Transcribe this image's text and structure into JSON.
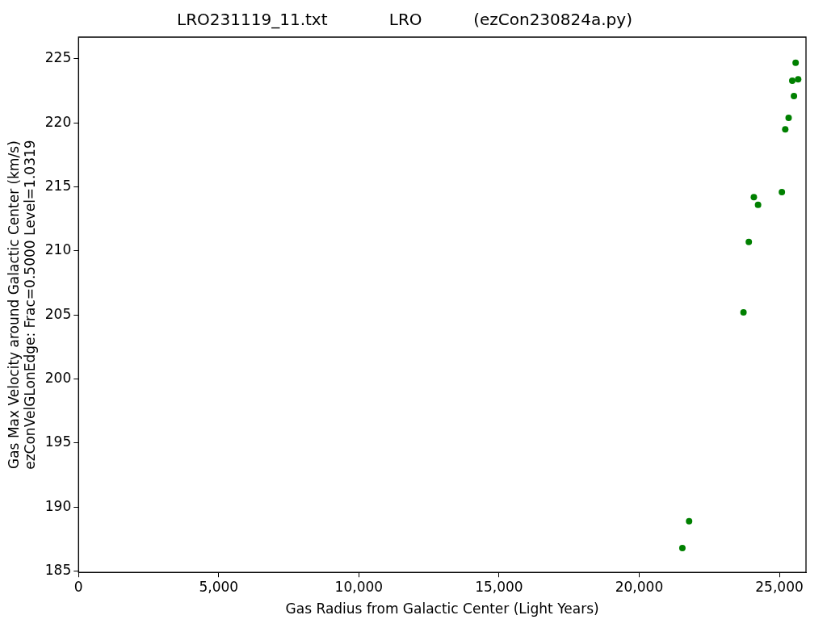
{
  "chart_data": {
    "type": "scatter",
    "title": "LRO231119_11.txt            LRO          (ezCon230824a.py)",
    "xlabel": "Gas Radius from Galactic Center (Light Years)",
    "ylabel": "Gas Max Velocity around Galactic Center (km/s)\nezConVelGLonEdge: Frac=0.5000 Level=1.0319",
    "series": [
      {
        "color": "#008000",
        "x": [
          21540,
          21780,
          23720,
          23910,
          24090,
          24240,
          25090,
          25210,
          25330,
          25520,
          25460,
          25670,
          25580
        ],
        "values": [
          186.8,
          188.9,
          205.2,
          210.7,
          214.2,
          213.6,
          214.6,
          219.5,
          220.4,
          222.1,
          223.3,
          223.4,
          224.7
        ]
      }
    ],
    "xlim": [
      0,
      25950
    ],
    "ylim": [
      184.9,
      226.7
    ],
    "xticks": [
      0,
      {
        "value": 5000,
        "label": "5,000"
      },
      {
        "value": 10000,
        "label": "10,000"
      },
      {
        "value": 15000,
        "label": "15,000"
      },
      {
        "value": 20000,
        "label": "20,000"
      },
      {
        "value": 25000,
        "label": "25,000"
      }
    ],
    "yticks": [
      185,
      190,
      195,
      200,
      205,
      210,
      215,
      220,
      225
    ],
    "marker": "circle",
    "grid": false,
    "legend": false
  }
}
